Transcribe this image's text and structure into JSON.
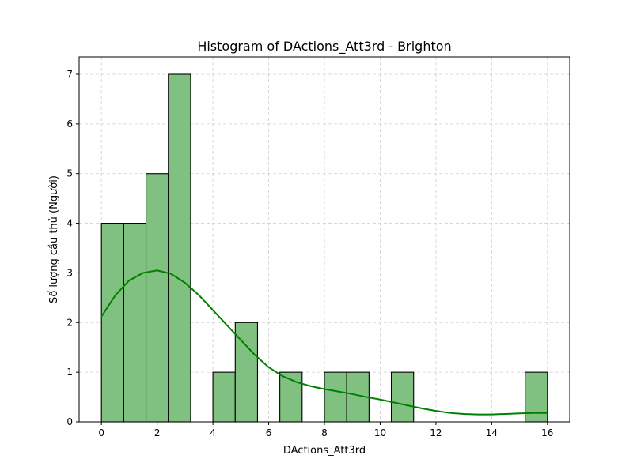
{
  "chart_data": {
    "type": "bar",
    "title": "Histogram of DActions_Att3rd - Brighton",
    "xlabel": "DActions_Att3rd",
    "ylabel": "Số lượng cầu thủ (Người)",
    "xlim": [
      -0.8,
      16.8
    ],
    "ylim": [
      0,
      7.35
    ],
    "xticks": [
      0,
      2,
      4,
      6,
      8,
      10,
      12,
      14,
      16
    ],
    "yticks": [
      0,
      1,
      2,
      3,
      4,
      5,
      6,
      7
    ],
    "grid": true,
    "bin_edges": [
      0,
      0.8,
      1.6,
      2.4,
      3.2,
      4.0,
      4.8,
      5.6,
      6.4,
      7.2,
      8.0,
      8.8,
      9.6,
      10.4,
      11.2,
      12.0,
      12.8,
      13.6,
      14.4,
      15.2,
      16.0
    ],
    "counts": [
      4,
      4,
      5,
      7,
      0,
      1,
      2,
      0,
      1,
      0,
      1,
      1,
      0,
      1,
      0,
      0,
      0,
      0,
      0,
      1
    ],
    "kde": {
      "x": [
        0,
        0.5,
        1,
        1.5,
        2,
        2.5,
        3,
        3.5,
        4,
        4.5,
        5,
        5.5,
        6,
        6.5,
        7,
        7.5,
        8,
        8.5,
        9,
        9.5,
        10,
        10.5,
        11,
        11.5,
        12,
        12.5,
        13,
        13.5,
        14,
        14.5,
        15,
        15.5,
        16
      ],
      "y": [
        2.12,
        2.55,
        2.85,
        3.0,
        3.05,
        2.98,
        2.8,
        2.55,
        2.25,
        1.95,
        1.65,
        1.35,
        1.1,
        0.92,
        0.8,
        0.72,
        0.66,
        0.61,
        0.56,
        0.5,
        0.45,
        0.39,
        0.33,
        0.27,
        0.22,
        0.18,
        0.16,
        0.15,
        0.15,
        0.16,
        0.17,
        0.18,
        0.18
      ]
    },
    "colors": {
      "bar_fill": "#80c080",
      "kde_line": "#008000"
    }
  }
}
